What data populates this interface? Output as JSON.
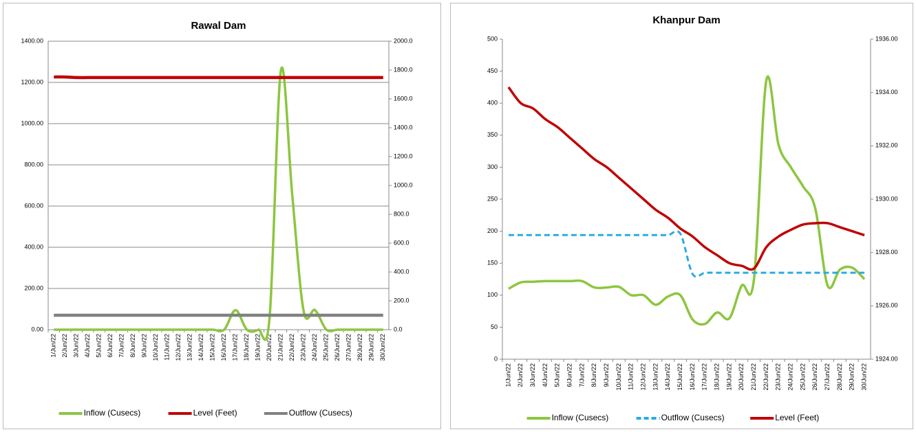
{
  "chart_data": [
    {
      "type": "line",
      "title": "Rawal Dam",
      "categories": [
        "1/Jun/22",
        "2/Jun/22",
        "3/Jun/22",
        "4/Jun/22",
        "5/Jun/22",
        "6/Jun/22",
        "7/Jun/22",
        "8/Jun/22",
        "9/Jun/22",
        "10/Jun/22",
        "11/Jun/22",
        "12/Jun/22",
        "13/Jun/22",
        "14/Jun/22",
        "15/Jun/22",
        "16/Jun/22",
        "17/Jun/22",
        "18/Jun/22",
        "19/Jun/22",
        "20/Jun/22",
        "21/Jun/22",
        "22/Jun/22",
        "23/Jun/22",
        "24/Jun/22",
        "25/Jun/22",
        "26/Jun/22",
        "27/Jun/22",
        "28/Jun/22",
        "29/Jun/22",
        "30/Jun/22"
      ],
      "series": [
        {
          "name": "Inflow (Cusecs)",
          "color": "#8cc63f",
          "values": [
            0,
            0,
            0,
            0,
            0,
            0,
            0,
            0,
            0,
            0,
            0,
            0,
            0,
            0,
            0,
            0,
            95,
            0,
            0,
            60,
            1260,
            650,
            90,
            95,
            0,
            0,
            0,
            0,
            0,
            0
          ]
        },
        {
          "name": "Level (Feet)",
          "color": "#c00000",
          "axis": "y2",
          "values": [
            1752,
            1752,
            1748,
            1748,
            1748,
            1748,
            1748,
            1748,
            1748,
            1748,
            1748,
            1748,
            1748,
            1748,
            1748,
            1748,
            1748,
            1748,
            1748,
            1748,
            1748,
            1748,
            1748,
            1748,
            1748,
            1748,
            1748,
            1748,
            1748,
            1748
          ]
        },
        {
          "name": "Outflow (Cusecs)",
          "color": "#808080",
          "values": [
            70,
            70,
            70,
            70,
            70,
            70,
            70,
            70,
            70,
            70,
            70,
            70,
            70,
            70,
            70,
            70,
            70,
            70,
            70,
            70,
            70,
            70,
            70,
            70,
            70,
            70,
            70,
            70,
            70,
            70
          ]
        }
      ],
      "ylim": [
        0,
        1400
      ],
      "yticks": [
        {
          "value": 0,
          "label": "0.00"
        },
        {
          "value": 200,
          "label": "200.00"
        },
        {
          "value": 400,
          "label": "400.00"
        },
        {
          "value": 600,
          "label": "600.00"
        },
        {
          "value": 800,
          "label": "800.00"
        },
        {
          "value": 1000,
          "label": "1000.00"
        },
        {
          "value": 1200,
          "label": "1200.00"
        },
        {
          "value": 1400,
          "label": "1400.00"
        }
      ],
      "y2lim": [
        0,
        2000
      ],
      "y2ticks": [
        {
          "value": 0,
          "label": "0.0"
        },
        {
          "value": 200,
          "label": "200.0"
        },
        {
          "value": 400,
          "label": "400.0"
        },
        {
          "value": 600,
          "label": "600.0"
        },
        {
          "value": 800,
          "label": "800.0"
        },
        {
          "value": 1000,
          "label": "1000.0"
        },
        {
          "value": 1200,
          "label": "1200.0"
        },
        {
          "value": 1400,
          "label": "1400.0"
        },
        {
          "value": 1600,
          "label": "1600.0"
        },
        {
          "value": 1800,
          "label": "1800.0"
        },
        {
          "value": 2000,
          "label": "2000.0"
        }
      ],
      "grid": true,
      "legend": "bottom"
    },
    {
      "type": "line",
      "title": "Khanpur Dam",
      "categories": [
        "1/Jun/22",
        "2/Jun/22",
        "3/Jun/22",
        "4/Jun/22",
        "5/Jun/22",
        "6/Jun/22",
        "7/Jun/22",
        "8/Jun/22",
        "9/Jun/22",
        "10/Jun/22",
        "11/Jun/22",
        "12/Jun/22",
        "13/Jun/22",
        "14/Jun/22",
        "15/Jun/22",
        "16/Jun/22",
        "17/Jun/22",
        "18/Jun/22",
        "19/Jun/22",
        "20/Jun/22",
        "21/Jun/22",
        "22/Jun/22",
        "23/Jun/22",
        "24/Jun/22",
        "25/Jun/22",
        "26/Jun/22",
        "27/Jun/22",
        "28/Jun/22",
        "29/Jun/22",
        "30/Jun/22"
      ],
      "series": [
        {
          "name": "Inflow (Cusecs)",
          "color": "#8cc63f",
          "values": [
            110,
            120,
            121,
            122,
            122,
            122,
            122,
            112,
            112,
            113,
            100,
            100,
            85,
            98,
            100,
            62,
            55,
            73,
            64,
            115,
            125,
            435,
            335,
            300,
            270,
            235,
            115,
            140,
            143,
            125
          ]
        },
        {
          "name": "Outflow (Cusecs)",
          "color": "#29abe2",
          "dashed": true,
          "values": [
            194,
            194,
            194,
            194,
            194,
            194,
            194,
            194,
            194,
            194,
            194,
            194,
            194,
            194,
            196,
            133,
            135,
            135,
            135,
            135,
            135,
            135,
            135,
            135,
            135,
            135,
            135,
            135,
            135,
            135
          ]
        },
        {
          "name": "Level (Feet)",
          "color": "#c00000",
          "axis": "y2",
          "values": [
            1934.2,
            1933.6,
            1933.4,
            1933.0,
            1932.7,
            1932.3,
            1931.9,
            1931.5,
            1931.2,
            1930.8,
            1930.4,
            1930.0,
            1929.6,
            1929.3,
            1928.9,
            1928.6,
            1928.2,
            1927.9,
            1927.6,
            1927.5,
            1927.4,
            1928.2,
            1928.6,
            1928.85,
            1929.05,
            1929.1,
            1929.1,
            1928.95,
            1928.8,
            1928.65
          ]
        }
      ],
      "ylim": [
        0,
        500
      ],
      "yticks": [
        0,
        50,
        100,
        150,
        200,
        250,
        300,
        350,
        400,
        450,
        500
      ],
      "y2lim": [
        1924,
        1936
      ],
      "y2ticks": [
        {
          "value": 1924,
          "label": "1924.00"
        },
        {
          "value": 1926,
          "label": "1926.00"
        },
        {
          "value": 1928,
          "label": "1928.00"
        },
        {
          "value": 1930,
          "label": "1930.00"
        },
        {
          "value": 1932,
          "label": "1932.00"
        },
        {
          "value": 1934,
          "label": "1934.00"
        },
        {
          "value": 1936,
          "label": "1936.00"
        }
      ],
      "grid": false,
      "legend": "bottom"
    }
  ]
}
